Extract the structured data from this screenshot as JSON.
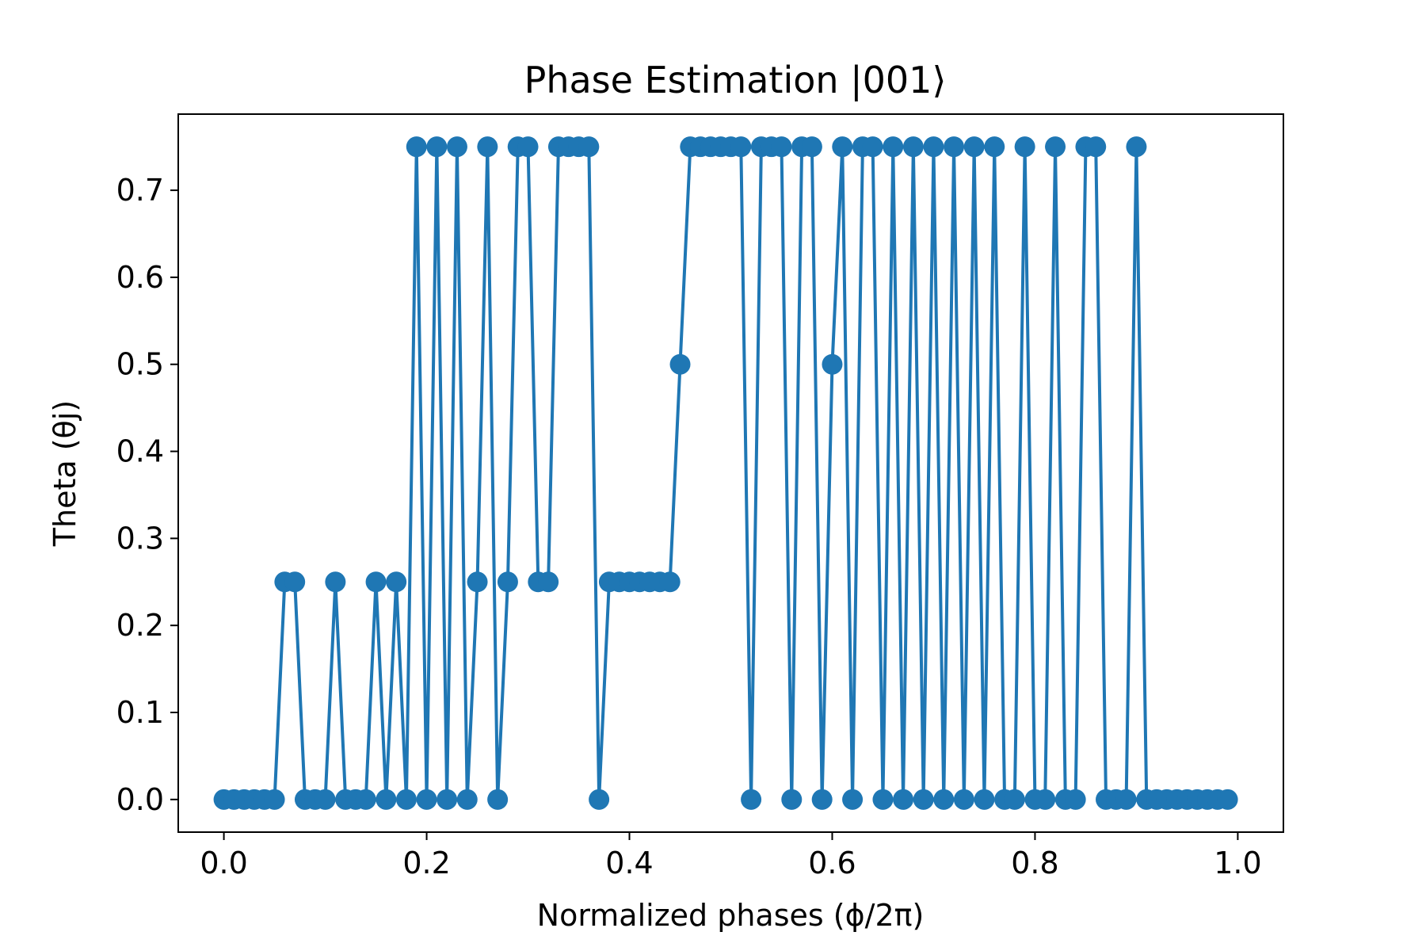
{
  "chart_data": {
    "type": "line",
    "title": "Phase Estimation |001⟩",
    "xlabel": "Normalized phases (ϕ/2π)",
    "ylabel": "Theta (θj)",
    "xlim": [
      -0.045,
      1.045
    ],
    "ylim": [
      -0.0375,
      0.7875
    ],
    "x_ticks": [
      "0.0",
      "0.2",
      "0.4",
      "0.6",
      "0.8",
      "1.0"
    ],
    "y_ticks": [
      "0.0",
      "0.1",
      "0.2",
      "0.3",
      "0.4",
      "0.5",
      "0.6",
      "0.7"
    ],
    "grid": false,
    "marker": "circle",
    "color": "#1f77b4",
    "series": [
      {
        "x_start": 0.0,
        "x_step": 0.01,
        "values": [
          0,
          0,
          0,
          0,
          0,
          0,
          0.25,
          0.25,
          0,
          0,
          0,
          0.25,
          0,
          0,
          0,
          0.25,
          0,
          0.25,
          0,
          0.75,
          0,
          0.75,
          0,
          0.75,
          0,
          0.25,
          0.75,
          0,
          0.25,
          0.75,
          0.75,
          0.25,
          0.25,
          0.75,
          0.75,
          0.75,
          0.75,
          0,
          0.25,
          0.25,
          0.25,
          0.25,
          0.25,
          0.25,
          0.25,
          0.5,
          0.75,
          0.75,
          0.75,
          0.75,
          0.75,
          0.75,
          0,
          0.75,
          0.75,
          0.75,
          0,
          0.75,
          0.75,
          0,
          0.5,
          0.75,
          0,
          0.75,
          0.75,
          0,
          0.75,
          0,
          0.75,
          0,
          0.75,
          0,
          0.75,
          0,
          0.75,
          0,
          0.75,
          0,
          0,
          0.75,
          0,
          0,
          0.75,
          0,
          0,
          0.75,
          0.75,
          0,
          0,
          0,
          0.75,
          0,
          0,
          0,
          0,
          0,
          0,
          0,
          0,
          0
        ]
      }
    ]
  }
}
